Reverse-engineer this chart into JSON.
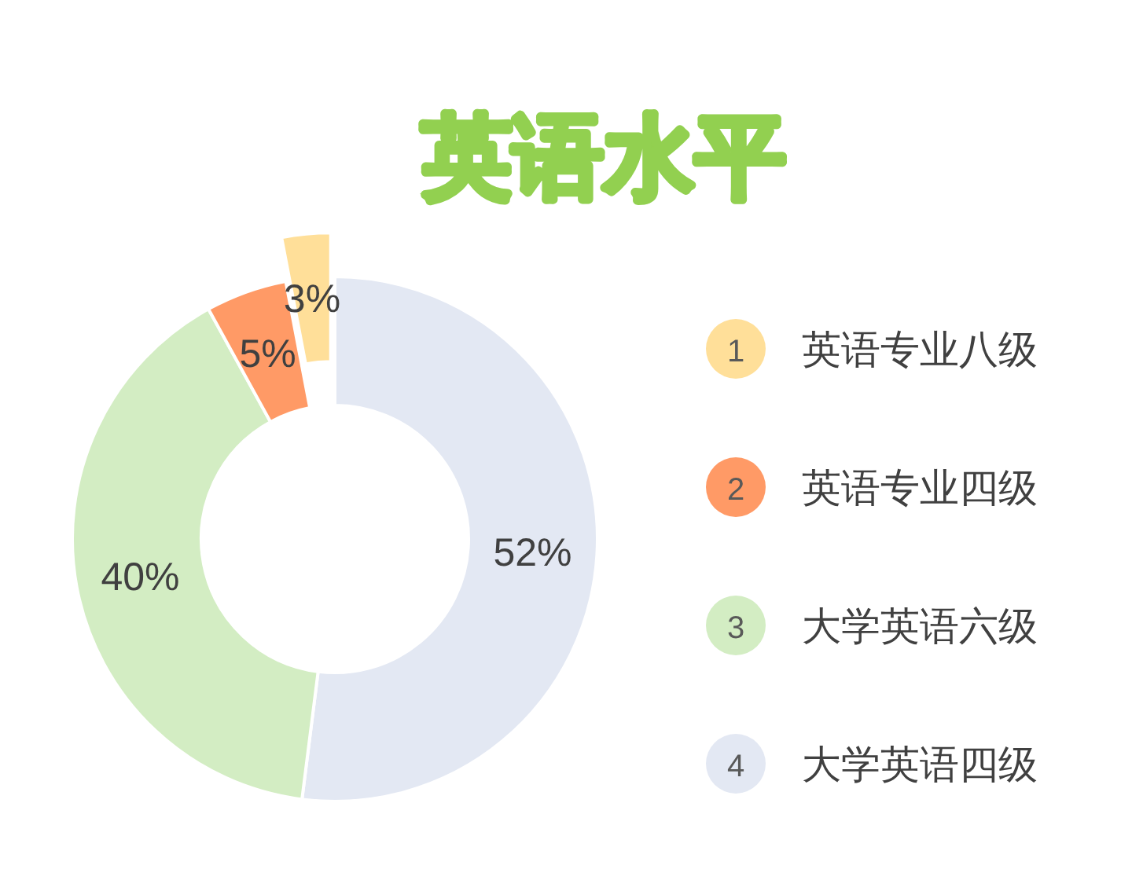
{
  "chart_data": {
    "type": "donut",
    "title": "英语水平",
    "categories": [
      "英语专业八级",
      "英语专业四级",
      "大学英语六级",
      "大学英语四级"
    ],
    "values": [
      3,
      5,
      40,
      52
    ],
    "colors": [
      "#ffdf99",
      "#ff9a66",
      "#d3edc3",
      "#e3e8f3"
    ],
    "value_labels": [
      "3%",
      "5%",
      "40%",
      "52%"
    ],
    "annotations": [
      "1",
      "2",
      "3",
      "4"
    ],
    "legend": "right"
  }
}
